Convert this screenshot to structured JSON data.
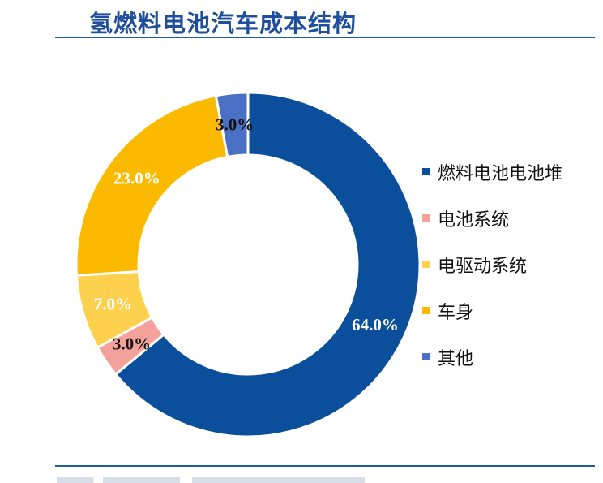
{
  "page": {
    "title": "氢燃料电池汽车成本结构"
  },
  "chart_data": {
    "type": "pie",
    "title": "氢燃料电池汽车成本结构",
    "slices": [
      {
        "label": "燃料电池电池堆",
        "value": 64.0,
        "display": "64.0%",
        "color": "#0b4f9c",
        "label_color": "#ffffff"
      },
      {
        "label": "电池系统",
        "value": 3.0,
        "display": "3.0%",
        "color": "#f4a19b",
        "label_color": "#111111"
      },
      {
        "label": "电驱动系统",
        "value": 7.0,
        "display": "7.0%",
        "color": "#fdd04d",
        "label_color": "#ffffff"
      },
      {
        "label": "车身",
        "value": 23.0,
        "display": "23.0%",
        "color": "#fbba00",
        "label_color": "#ffffff"
      },
      {
        "label": "其他",
        "value": 3.0,
        "display": "3.0%",
        "color": "#4a70c4",
        "label_color": "#111111"
      }
    ],
    "legend_position": "right",
    "donut": true
  }
}
